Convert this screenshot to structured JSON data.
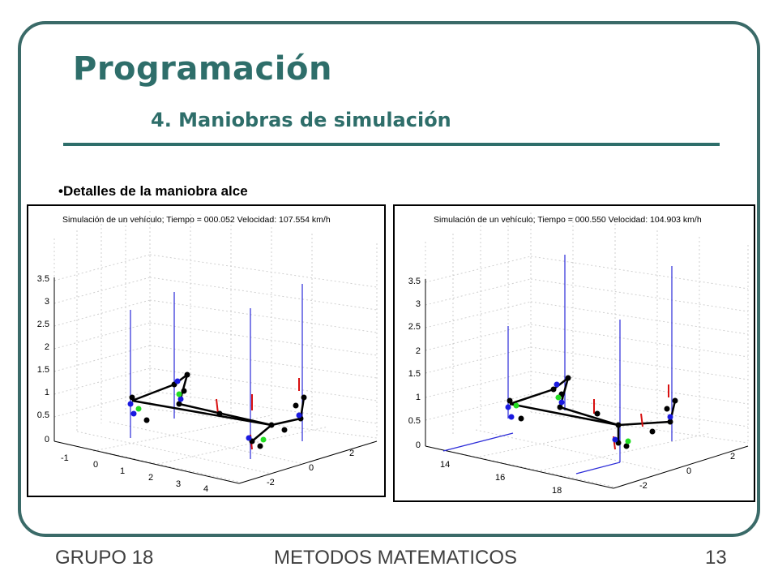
{
  "slide": {
    "title": "Programación",
    "subtitle": "4. Maniobras de simulación",
    "bullet": "•Detalles de la maniobra alce"
  },
  "plots": [
    {
      "caption": "Simulación de un vehículo; Tiempo = 000.052  Velocidad: 107.554 km/h",
      "z_ticks": [
        "3.5",
        "3",
        "2.5",
        "2",
        "1.5",
        "1",
        "0.5",
        "0"
      ],
      "x_ticks": [
        "-1",
        "0",
        "1",
        "2",
        "3",
        "4"
      ],
      "y_ticks": [
        "-2",
        "0",
        "2"
      ]
    },
    {
      "caption": "Simulación de un vehículo; Tiempo = 000.550  Velocidad: 104.903 km/h",
      "z_ticks": [
        "3.5",
        "3",
        "2.5",
        "2",
        "1.5",
        "1",
        "0.5",
        "0"
      ],
      "x_ticks": [
        "14",
        "16",
        "18"
      ],
      "y_ticks": [
        "-2",
        "0",
        "2"
      ]
    }
  ],
  "footer": {
    "group": "GRUPO 18",
    "course": "METODOS MATEMATICOS",
    "page": "13"
  },
  "colors": {
    "accent": "#2e6e6a",
    "frame": "#3a6a68",
    "footer_text": "#3f3f3f"
  }
}
